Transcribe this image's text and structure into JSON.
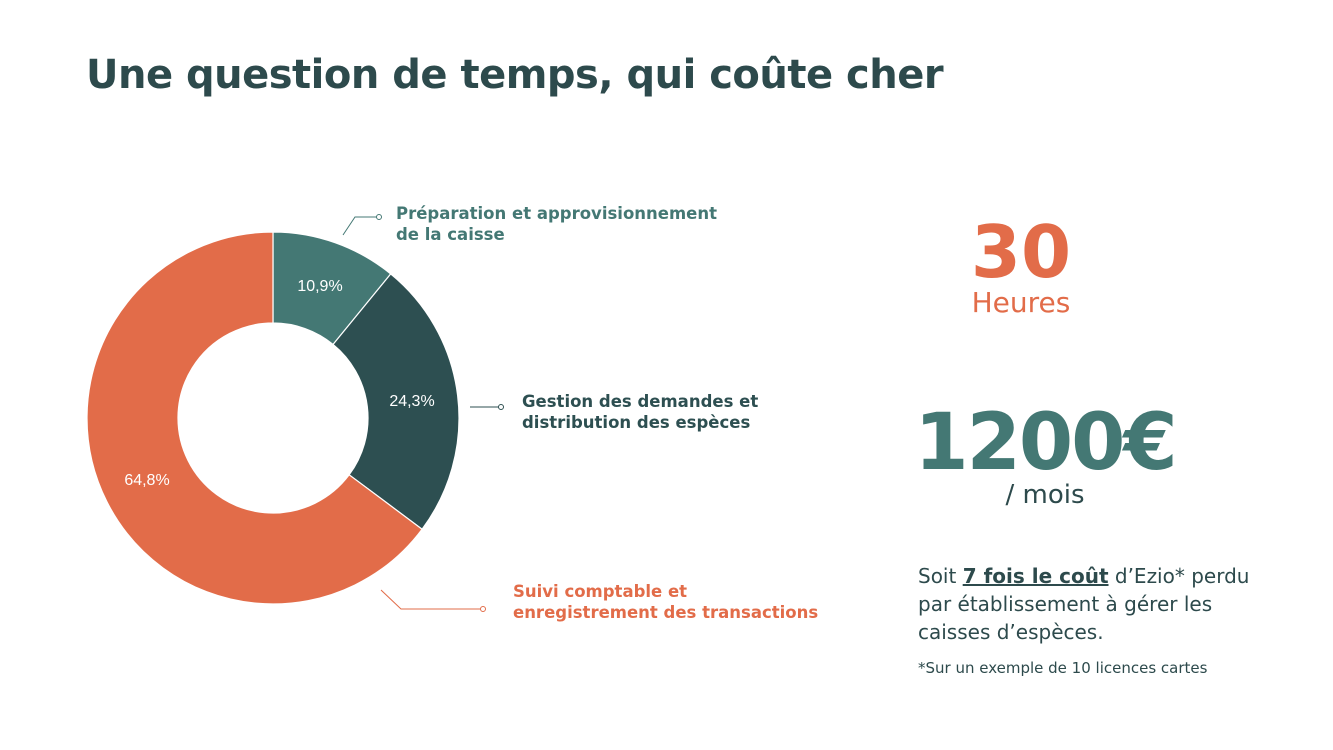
{
  "slide": {
    "title": "Une question de temps, qui coûte cher"
  },
  "chart_data": {
    "type": "pie",
    "variant": "donut",
    "categories": [
      "Préparation et approvisionnement\nde la caisse",
      "Gestion des demandes et\ndistribution des espèces",
      "Suivi comptable et\nenregistrement des transactions"
    ],
    "values": [
      10.9,
      24.3,
      64.8
    ],
    "value_labels": [
      "10,9%",
      "24,3%",
      "64,8%"
    ],
    "colors": [
      "#447874",
      "#2d4f51",
      "#e26c49"
    ],
    "label_colors": [
      "#447874",
      "#2d4f51",
      "#e26c49"
    ],
    "start": "top, clockwise",
    "legend": "leader-line labels"
  },
  "stats": {
    "hours_value": "30",
    "hours_unit": "Heures",
    "cost_value": "1200€",
    "cost_unit": "/ mois",
    "colors": {
      "hours": "#e26c49",
      "cost": "#447874",
      "text": "#2d4a4c"
    }
  },
  "comparison": {
    "prefix": "Soit ",
    "emphasis": "7 fois le coût",
    "suffix": " d’Ezio* perdu par établissement à gérer les caisses d’espèces."
  },
  "footnote": "*Sur un exemple de 10 licences cartes"
}
